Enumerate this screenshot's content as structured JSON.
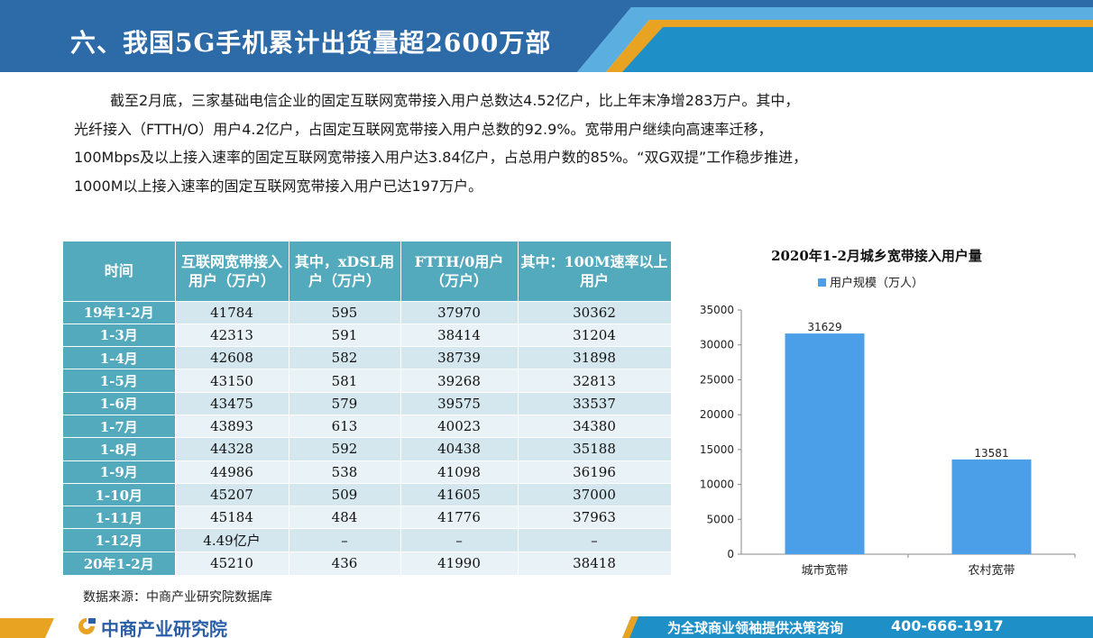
{
  "header": {
    "title": "六、我国5G手机累计出货量超2600万部"
  },
  "paragraph": [
    "截至2月底，三家基础电信企业的固定互联网宽带接入用户总数达4.52亿户，比上年末净增283万户。其中，",
    "光纤接入（FTTH/O）用户4.2亿户，占固定互联网宽带接入用户总数的92.9%。宽带用户继续向高速率迁移，",
    "100Mbps及以上接入速率的固定互联网宽带接入用户达3.84亿户，占总用户数的85%。“双G双提”工作稳步推进，",
    "1000M以上接入速率的固定互联网宽带接入用户已达197万户。"
  ],
  "table": {
    "headers": [
      "时间",
      "互联网宽带接入用户（万户）",
      "其中，xDSL用户（万户）",
      "FTTH/0用户（万户）",
      "其中：100M速率以上用户"
    ],
    "rows": [
      [
        "19年1-2月",
        "41784",
        "595",
        "37970",
        "30362"
      ],
      [
        "1-3月",
        "42313",
        "591",
        "38414",
        "31204"
      ],
      [
        "1-4月",
        "42608",
        "582",
        "38739",
        "31898"
      ],
      [
        "1-5月",
        "43150",
        "581",
        "39268",
        "32813"
      ],
      [
        "1-6月",
        "43475",
        "579",
        "39575",
        "33537"
      ],
      [
        "1-7月",
        "43893",
        "613",
        "40023",
        "34380"
      ],
      [
        "1-8月",
        "44328",
        "592",
        "40438",
        "35188"
      ],
      [
        "1-9月",
        "44986",
        "538",
        "41098",
        "36196"
      ],
      [
        "1-10月",
        "45207",
        "509",
        "41605",
        "37000"
      ],
      [
        "1-11月",
        "45184",
        "484",
        "41776",
        "37963"
      ],
      [
        "1-12月",
        "4.49亿户",
        "–",
        "–",
        "–"
      ],
      [
        "20年1-2月",
        "45210",
        "436",
        "41990",
        "38418"
      ]
    ]
  },
  "source": "数据来源：中商产业研究院数据库",
  "chart_data": {
    "type": "bar",
    "title": "2020年1-2月城乡宽带接入用户量",
    "categories": [
      "城市宽带",
      "农村宽带"
    ],
    "series": [
      {
        "name": "用户规模（万人）",
        "values": [
          31629,
          13581
        ]
      }
    ],
    "ylim": [
      0,
      35000
    ],
    "yticks": [
      0,
      5000,
      10000,
      15000,
      20000,
      25000,
      30000,
      35000
    ],
    "legend": "top",
    "grid": false,
    "bar_color": "#4a9fe8"
  },
  "footer": {
    "brand": "中商产业研究院",
    "slogan": "为全球商业领袖提供决策咨询",
    "phone": "400-666-1917"
  },
  "colors": {
    "banner_dark": "#2d6aa8",
    "banner_light": "#5aaee0",
    "banner_accent": "#e8a323",
    "table_header": "#54aabd"
  }
}
